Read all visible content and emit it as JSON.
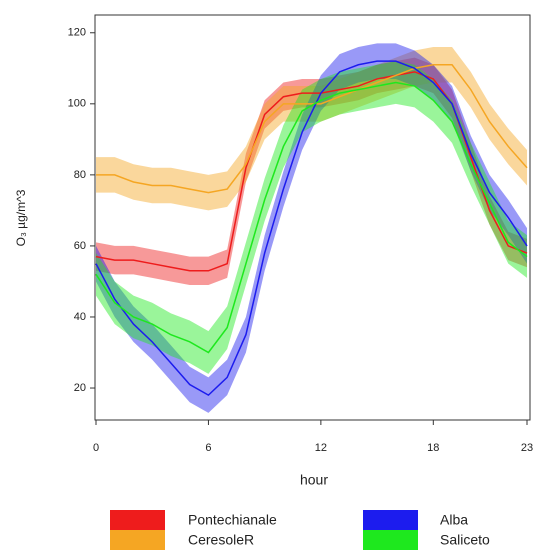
{
  "chart_data": {
    "type": "line",
    "xlabel": "hour",
    "ylabel": "O₃ µg/m^3",
    "x": [
      0,
      1,
      2,
      3,
      4,
      5,
      6,
      7,
      8,
      9,
      10,
      11,
      12,
      13,
      14,
      15,
      16,
      17,
      18,
      19,
      20,
      21,
      22,
      23
    ],
    "xlim": [
      0,
      23
    ],
    "xticks": [
      0,
      6,
      12,
      18,
      23
    ],
    "ylim": [
      11,
      125
    ],
    "yticks": [
      20,
      40,
      60,
      80,
      100,
      120
    ],
    "series": [
      {
        "name": "Pontechianale",
        "color": "#ee1c1c",
        "values": [
          57,
          56,
          56,
          55,
          54,
          53,
          53,
          55,
          82,
          97,
          102,
          103,
          103,
          104,
          105,
          107,
          108,
          109,
          107,
          100,
          85,
          70,
          60,
          58
        ],
        "upper": [
          61,
          60,
          60,
          59,
          58,
          57,
          57,
          59,
          86,
          101,
          106,
          107,
          107,
          108,
          109,
          111,
          112,
          113,
          111,
          104,
          89,
          74,
          64,
          62
        ],
        "lower": [
          53,
          52,
          52,
          51,
          50,
          49,
          49,
          51,
          78,
          93,
          98,
          99,
          99,
          100,
          101,
          103,
          104,
          105,
          103,
          96,
          81,
          66,
          56,
          54
        ]
      },
      {
        "name": "CeresoleR",
        "color": "#f5a623",
        "values": [
          80,
          80,
          78,
          77,
          77,
          76,
          75,
          76,
          83,
          95,
          100,
          100,
          100,
          102,
          104,
          106,
          108,
          110,
          111,
          111,
          104,
          95,
          88,
          82
        ],
        "upper": [
          85,
          85,
          83,
          82,
          82,
          81,
          80,
          81,
          88,
          100,
          105,
          105,
          105,
          107,
          109,
          111,
          113,
          115,
          116,
          116,
          109,
          100,
          93,
          87
        ],
        "lower": [
          75,
          75,
          73,
          72,
          72,
          71,
          70,
          71,
          78,
          90,
          95,
          95,
          95,
          97,
          99,
          101,
          103,
          105,
          106,
          106,
          99,
          90,
          83,
          77
        ]
      },
      {
        "name": "Alba",
        "color": "#1c1cee",
        "values": [
          55,
          45,
          38,
          33,
          27,
          21,
          18,
          23,
          35,
          58,
          76,
          92,
          103,
          109,
          111,
          112,
          112,
          110,
          106,
          100,
          86,
          75,
          68,
          60
        ],
        "upper": [
          60,
          50,
          43,
          38,
          32,
          26,
          23,
          28,
          40,
          63,
          81,
          97,
          108,
          114,
          116,
          117,
          117,
          115,
          111,
          105,
          91,
          80,
          73,
          65
        ],
        "lower": [
          50,
          40,
          33,
          28,
          22,
          16,
          13,
          18,
          30,
          53,
          71,
          87,
          98,
          104,
          106,
          107,
          107,
          105,
          101,
          95,
          81,
          70,
          63,
          55
        ]
      },
      {
        "name": "Saliceto",
        "color": "#1ee81e",
        "values": [
          52,
          44,
          40,
          38,
          35,
          33,
          30,
          37,
          55,
          73,
          88,
          98,
          101,
          103,
          104,
          105,
          106,
          105,
          101,
          95,
          83,
          72,
          61,
          57
        ],
        "upper": [
          58,
          50,
          46,
          44,
          41,
          39,
          36,
          43,
          61,
          79,
          94,
          104,
          107,
          109,
          110,
          111,
          112,
          111,
          107,
          101,
          89,
          78,
          67,
          63
        ],
        "lower": [
          46,
          38,
          34,
          32,
          29,
          27,
          24,
          31,
          49,
          67,
          82,
          92,
          95,
          97,
          98,
          99,
          100,
          99,
          95,
          89,
          77,
          66,
          55,
          51
        ]
      }
    ]
  }
}
